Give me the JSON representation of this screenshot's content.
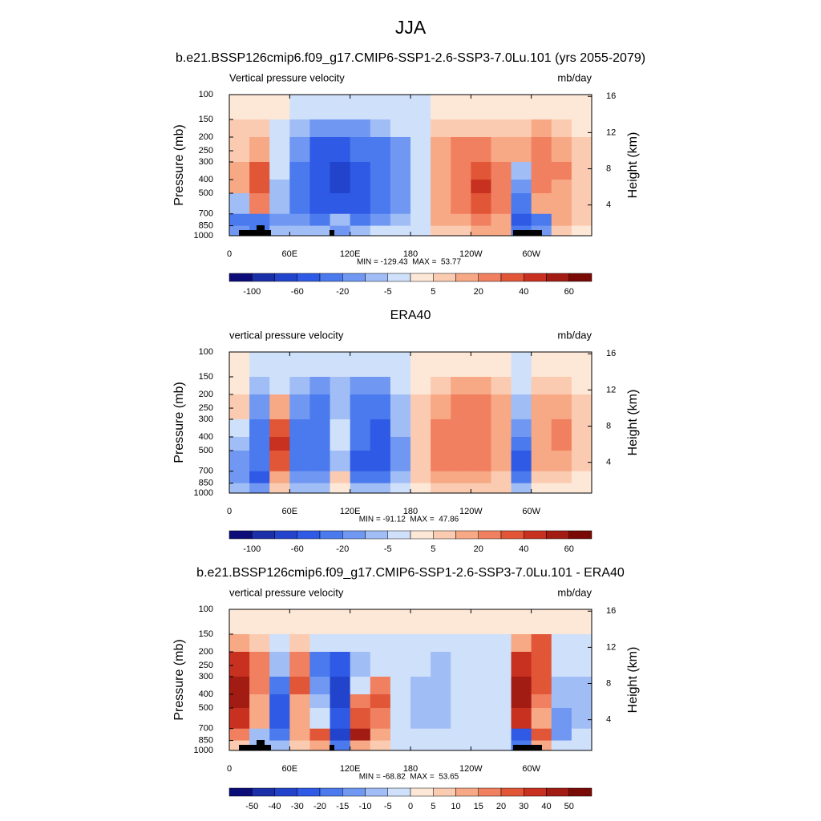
{
  "title": "JJA",
  "chart_data": [
    {
      "type": "contour",
      "title": "b.e21.BSSP126cmip6.f09_g17.CMIP6-SSP1-2.6-SSP3-7.0Lu.101 (yrs 2055-2079)",
      "left_label": "Vertical pressure velocity",
      "right_label": "mb/day",
      "y_label": "Pressure (mb)",
      "y2_label": "Height (km)",
      "stats": "MIN = -129.43  MAX =  53.77",
      "x_bins": [
        0,
        20,
        40,
        60,
        80,
        100,
        120,
        140,
        160,
        180,
        200,
        220,
        240,
        260,
        280,
        300,
        320,
        340,
        360
      ],
      "p_bins": [
        100,
        150,
        200,
        300,
        400,
        500,
        700,
        850,
        1000
      ],
      "values": [
        [
          2,
          2,
          2,
          -3,
          -3,
          -3,
          -3,
          -3,
          -2,
          -1,
          2,
          2,
          2,
          2,
          2,
          2,
          2,
          2
        ],
        [
          5,
          5,
          -5,
          -10,
          -20,
          -20,
          -20,
          -10,
          -5,
          -3,
          7,
          8,
          7,
          5,
          5,
          10,
          5,
          3
        ],
        [
          7,
          15,
          -5,
          -20,
          -60,
          -60,
          -40,
          -40,
          -20,
          -5,
          15,
          20,
          20,
          15,
          10,
          20,
          15,
          5
        ],
        [
          10,
          30,
          -5,
          -40,
          -60,
          -80,
          -60,
          -40,
          -20,
          -5,
          15,
          25,
          30,
          20,
          -10,
          25,
          20,
          5
        ],
        [
          10,
          35,
          -10,
          -40,
          -60,
          -80,
          -60,
          -40,
          -20,
          -5,
          15,
          25,
          40,
          20,
          -20,
          20,
          15,
          5
        ],
        [
          -10,
          20,
          -10,
          -40,
          -60,
          -60,
          -60,
          -40,
          -20,
          -5,
          15,
          20,
          35,
          20,
          -40,
          10,
          10,
          5
        ],
        [
          -30,
          -40,
          -20,
          -20,
          -40,
          -10,
          -40,
          -20,
          -10,
          -3,
          10,
          15,
          20,
          15,
          -60,
          -40,
          10,
          5
        ],
        [
          -20,
          -30,
          -10,
          -10,
          -10,
          -20,
          -10,
          -5,
          -5,
          -2,
          5,
          5,
          10,
          10,
          -40,
          -20,
          5,
          2
        ]
      ],
      "xlim": [
        0,
        360
      ],
      "xticks": [
        0,
        {
          "value": 60,
          "label": "60E"
        },
        {
          "value": 120,
          "label": "120E"
        },
        180,
        {
          "value": 240,
          "label": "120W"
        },
        {
          "value": 300,
          "label": "60W"
        }
      ],
      "ylim": [
        1000,
        100
      ],
      "ylog": true,
      "yticks": [
        100,
        150,
        200,
        250,
        300,
        400,
        500,
        700,
        850,
        1000
      ],
      "y2lim": [
        0.6,
        16.2
      ],
      "y2ticks": [
        4,
        8,
        12,
        16
      ],
      "levels": [
        -100,
        -80,
        -60,
        -40,
        -20,
        -10,
        -5,
        0,
        5,
        10,
        20,
        30,
        40,
        50,
        60
      ],
      "cbar_ticks": [
        -100,
        -60,
        -20,
        -5,
        5,
        20,
        40,
        60
      ],
      "colors": [
        "#0b0c78",
        "#1a2fa8",
        "#2244cc",
        "#2f5ae6",
        "#4a7aee",
        "#7098f2",
        "#a0bdf5",
        "#cfe0fa",
        "#fde8d8",
        "#fbcbb1",
        "#f7a884",
        "#f08060",
        "#e25638",
        "#c83020",
        "#a31c14",
        "#7a0a06"
      ]
    },
    {
      "type": "contour",
      "title": "ERA40",
      "left_label": "vertical pressure velocity",
      "right_label": "mb/day",
      "y_label": "Pressure (mb)",
      "y2_label": "Height (km)",
      "stats": "MIN = -91.12  MAX =  47.86",
      "x_bins": [
        0,
        20,
        40,
        60,
        80,
        100,
        120,
        140,
        160,
        180,
        200,
        220,
        240,
        260,
        280,
        300,
        320,
        340,
        360
      ],
      "p_bins": [
        100,
        150,
        200,
        300,
        400,
        500,
        700,
        850,
        1000
      ],
      "values": [
        [
          3,
          -3,
          -3,
          -3,
          -3,
          -3,
          -3,
          -3,
          -3,
          3,
          3,
          3,
          3,
          3,
          -3,
          3,
          3,
          3
        ],
        [
          3,
          -10,
          -3,
          -10,
          -20,
          -10,
          -20,
          -20,
          -5,
          3,
          5,
          10,
          10,
          5,
          -5,
          5,
          5,
          3
        ],
        [
          5,
          -20,
          15,
          -20,
          -40,
          -10,
          -40,
          -40,
          -10,
          5,
          15,
          20,
          20,
          10,
          -10,
          10,
          10,
          5
        ],
        [
          -5,
          -40,
          30,
          -30,
          -40,
          -5,
          -40,
          -60,
          -10,
          5,
          20,
          20,
          25,
          15,
          -20,
          15,
          20,
          5
        ],
        [
          -10,
          -40,
          40,
          -30,
          -40,
          -5,
          -40,
          -60,
          -20,
          5,
          20,
          25,
          25,
          15,
          -40,
          15,
          20,
          5
        ],
        [
          -20,
          -40,
          30,
          -30,
          -40,
          -10,
          -60,
          -60,
          -20,
          5,
          20,
          20,
          20,
          10,
          -60,
          10,
          10,
          5
        ],
        [
          -20,
          -60,
          10,
          -20,
          -20,
          5,
          -40,
          -40,
          -10,
          5,
          10,
          10,
          10,
          5,
          -40,
          5,
          5,
          3
        ],
        [
          -10,
          -20,
          5,
          -10,
          -10,
          3,
          -10,
          -10,
          -5,
          3,
          5,
          5,
          5,
          5,
          -10,
          3,
          3,
          3
        ]
      ],
      "xlim": [
        0,
        360
      ],
      "xticks": [
        0,
        {
          "value": 60,
          "label": "60E"
        },
        {
          "value": 120,
          "label": "120E"
        },
        180,
        {
          "value": 240,
          "label": "120W"
        },
        {
          "value": 300,
          "label": "60W"
        }
      ],
      "ylim": [
        1000,
        100
      ],
      "ylog": true,
      "yticks": [
        100,
        150,
        200,
        250,
        300,
        400,
        500,
        700,
        850,
        1000
      ],
      "y2lim": [
        0.6,
        16.2
      ],
      "y2ticks": [
        4,
        8,
        12,
        16
      ],
      "levels": [
        -100,
        -80,
        -60,
        -40,
        -20,
        -10,
        -5,
        0,
        5,
        10,
        20,
        30,
        40,
        50,
        60
      ],
      "cbar_ticks": [
        -100,
        -60,
        -20,
        -5,
        5,
        20,
        40,
        60
      ],
      "colors": [
        "#0b0c78",
        "#1a2fa8",
        "#2244cc",
        "#2f5ae6",
        "#4a7aee",
        "#7098f2",
        "#a0bdf5",
        "#cfe0fa",
        "#fde8d8",
        "#fbcbb1",
        "#f7a884",
        "#f08060",
        "#e25638",
        "#c83020",
        "#a31c14",
        "#7a0a06"
      ]
    },
    {
      "type": "contour",
      "title": "b.e21.BSSP126cmip6.f09_g17.CMIP6-SSP1-2.6-SSP3-7.0Lu.101 - ERA40",
      "left_label": "vertical pressure velocity",
      "right_label": "mb/day",
      "y_label": "Pressure (mb)",
      "y2_label": "Height (km)",
      "stats": "MIN = -68.82  MAX =  53.65",
      "x_bins": [
        0,
        20,
        40,
        60,
        80,
        100,
        120,
        140,
        160,
        180,
        200,
        220,
        240,
        260,
        280,
        300,
        320,
        340,
        360
      ],
      "p_bins": [
        100,
        150,
        200,
        300,
        400,
        500,
        700,
        850,
        1000
      ],
      "values": [
        [
          2,
          2,
          2,
          2,
          2,
          2,
          2,
          2,
          2,
          2,
          2,
          2,
          2,
          2,
          2,
          2,
          2,
          2
        ],
        [
          10,
          5,
          -3,
          5,
          -3,
          -5,
          -3,
          -3,
          -3,
          -3,
          -3,
          -3,
          -3,
          -3,
          10,
          20,
          -3,
          -3
        ],
        [
          30,
          15,
          -10,
          15,
          -20,
          -30,
          -10,
          -5,
          -5,
          -5,
          -10,
          -5,
          -3,
          -3,
          30,
          20,
          -5,
          -5
        ],
        [
          40,
          15,
          -20,
          20,
          -15,
          -40,
          -5,
          15,
          -5,
          -10,
          -10,
          -5,
          -5,
          -5,
          40,
          20,
          -10,
          -10
        ],
        [
          40,
          10,
          -30,
          10,
          -10,
          -40,
          15,
          20,
          -5,
          -10,
          -10,
          -5,
          -5,
          -5,
          40,
          15,
          -10,
          -10
        ],
        [
          30,
          10,
          -30,
          10,
          -5,
          -30,
          20,
          15,
          -5,
          -10,
          -10,
          -5,
          -5,
          -5,
          30,
          10,
          -15,
          -10
        ],
        [
          15,
          -10,
          -20,
          10,
          20,
          -40,
          40,
          10,
          -5,
          -5,
          -5,
          -5,
          -5,
          -5,
          -30,
          20,
          -15,
          -5
        ],
        [
          5,
          -10,
          -10,
          5,
          10,
          -20,
          10,
          5,
          -3,
          -3,
          -3,
          -3,
          -3,
          -3,
          -20,
          10,
          -5,
          -5
        ]
      ],
      "xlim": [
        0,
        360
      ],
      "xticks": [
        0,
        {
          "value": 60,
          "label": "60E"
        },
        {
          "value": 120,
          "label": "120E"
        },
        180,
        {
          "value": 240,
          "label": "120W"
        },
        {
          "value": 300,
          "label": "60W"
        }
      ],
      "ylim": [
        1000,
        100
      ],
      "ylog": true,
      "yticks": [
        100,
        150,
        200,
        250,
        300,
        400,
        500,
        700,
        850,
        1000
      ],
      "y2lim": [
        0.6,
        16.2
      ],
      "y2ticks": [
        4,
        8,
        12,
        16
      ],
      "levels": [
        -50,
        -40,
        -30,
        -20,
        -15,
        -10,
        -5,
        0,
        5,
        10,
        15,
        20,
        30,
        40,
        50
      ],
      "cbar_ticks": [
        -50,
        -40,
        -30,
        -20,
        -15,
        -10,
        -5,
        0,
        5,
        10,
        15,
        20,
        30,
        40,
        50
      ],
      "colors": [
        "#0b0c78",
        "#1a2fa8",
        "#2244cc",
        "#2f5ae6",
        "#4a7aee",
        "#7098f2",
        "#a0bdf5",
        "#cfe0fa",
        "#fde8d8",
        "#fbcbb1",
        "#f7a884",
        "#f08060",
        "#e25638",
        "#c83020",
        "#a31c14",
        "#7a0a06"
      ]
    }
  ]
}
